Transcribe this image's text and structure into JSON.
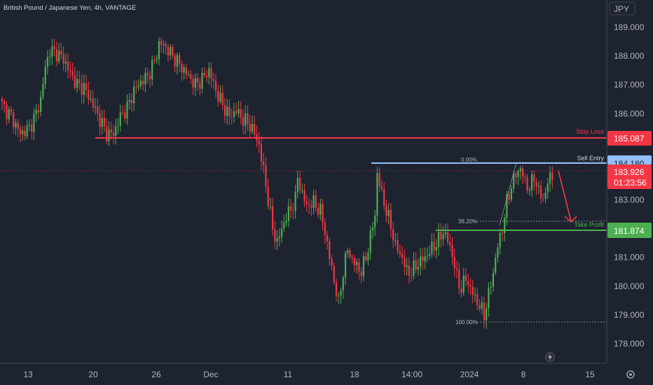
{
  "header": {
    "symbol_title": "British Pound / Japanese Yen, 4h, VANTAGE",
    "currency": "JPY"
  },
  "price_axis": {
    "ticks": [
      "189.000",
      "188.000",
      "187.000",
      "186.000",
      "183.000",
      "181.000",
      "180.000",
      "179.000",
      "178.000"
    ]
  },
  "time_axis": {
    "ticks": [
      "13",
      "20",
      "26",
      "Dec",
      "11",
      "18",
      "14:00",
      "2024",
      "8",
      "15"
    ]
  },
  "levels": {
    "stop_loss": {
      "label": "Stop Loss",
      "price": "185.087",
      "color": "#f23645"
    },
    "sell_entry": {
      "label": "Sell Entry",
      "price": "184.180",
      "color": "#90bff9"
    },
    "take_profit": {
      "label": "Take Profit",
      "price": "181.874",
      "color": "#4caf50"
    }
  },
  "last_price": {
    "price": "183.926",
    "countdown": "01:23:56",
    "color": "#f23645"
  },
  "fib_labels": {
    "top": "0.00%",
    "mid": "38.20%",
    "bottom": "100.00%"
  },
  "colors": {
    "up": "#4caf50",
    "down": "#f23645",
    "background": "#1e2330"
  },
  "chart_data": {
    "type": "candlestick",
    "title": "British Pound / Japanese Yen, 4h, VANTAGE",
    "y_unit": "JPY",
    "ylim": [
      177.4,
      189.7
    ],
    "x_ticks": [
      "13",
      "20",
      "26",
      "Dec",
      "11",
      "18",
      "14:00",
      "2024",
      "8",
      "15"
    ],
    "anchors": [
      [
        0,
        186.3
      ],
      [
        4,
        185.9
      ],
      [
        8,
        185.3
      ],
      [
        12,
        185.5
      ],
      [
        15,
        186.0
      ],
      [
        17,
        186.5
      ],
      [
        19,
        187.6
      ],
      [
        21,
        188.2
      ],
      [
        24,
        188.1
      ],
      [
        27,
        187.9
      ],
      [
        30,
        187.4
      ],
      [
        33,
        187.0
      ],
      [
        36,
        186.9
      ],
      [
        40,
        186.3
      ],
      [
        43,
        185.8
      ],
      [
        46,
        185.3
      ],
      [
        49,
        185.3
      ],
      [
        52,
        185.9
      ],
      [
        55,
        186.2
      ],
      [
        58,
        186.8
      ],
      [
        61,
        187.1
      ],
      [
        64,
        187.3
      ],
      [
        67,
        187.8
      ],
      [
        69,
        188.4
      ],
      [
        71,
        188.4
      ],
      [
        73,
        188.2
      ],
      [
        76,
        187.9
      ],
      [
        79,
        187.6
      ],
      [
        82,
        187.3
      ],
      [
        85,
        187.0
      ],
      [
        88,
        187.2
      ],
      [
        91,
        187.5
      ],
      [
        94,
        186.8
      ],
      [
        97,
        186.3
      ],
      [
        100,
        185.9
      ],
      [
        103,
        186.1
      ],
      [
        106,
        185.8
      ],
      [
        109,
        185.6
      ],
      [
        111,
        185.3
      ],
      [
        113,
        184.9
      ],
      [
        115,
        184.0
      ],
      [
        117,
        183.0
      ],
      [
        119,
        182.0
      ],
      [
        121,
        181.5
      ],
      [
        123,
        182.0
      ],
      [
        125,
        182.4
      ],
      [
        127,
        182.7
      ],
      [
        129,
        183.0
      ],
      [
        130,
        183.8
      ],
      [
        132,
        183.2
      ],
      [
        134,
        182.8
      ],
      [
        137,
        182.9
      ],
      [
        140,
        182.6
      ],
      [
        142,
        181.9
      ],
      [
        144,
        181.0
      ],
      [
        146,
        180.2
      ],
      [
        148,
        179.4
      ],
      [
        150,
        180.5
      ],
      [
        152,
        181.3
      ],
      [
        154,
        180.9
      ],
      [
        156,
        180.7
      ],
      [
        158,
        180.5
      ],
      [
        160,
        181.0
      ],
      [
        162,
        181.7
      ],
      [
        164,
        182.5
      ],
      [
        165,
        183.9
      ],
      [
        167,
        183.2
      ],
      [
        169,
        182.6
      ],
      [
        171,
        182.1
      ],
      [
        173,
        181.4
      ],
      [
        176,
        181.0
      ],
      [
        178,
        180.5
      ],
      [
        180,
        180.5
      ],
      [
        183,
        180.8
      ],
      [
        186,
        181.0
      ],
      [
        189,
        181.3
      ],
      [
        192,
        181.6
      ],
      [
        194,
        181.9
      ],
      [
        196,
        181.6
      ],
      [
        198,
        181.1
      ],
      [
        200,
        180.3
      ],
      [
        202,
        179.9
      ],
      [
        204,
        180.3
      ],
      [
        206,
        179.9
      ],
      [
        208,
        179.6
      ],
      [
        210,
        179.3
      ],
      [
        212,
        179.0
      ],
      [
        214,
        179.7
      ],
      [
        216,
        180.5
      ],
      [
        218,
        181.4
      ],
      [
        220,
        182.0
      ],
      [
        222,
        182.9
      ],
      [
        224,
        183.5
      ],
      [
        226,
        183.9
      ],
      [
        228,
        184.1
      ],
      [
        230,
        183.6
      ],
      [
        232,
        183.4
      ],
      [
        234,
        183.8
      ],
      [
        236,
        183.3
      ],
      [
        238,
        183.0
      ],
      [
        240,
        183.6
      ],
      [
        242,
        183.9
      ]
    ]
  }
}
